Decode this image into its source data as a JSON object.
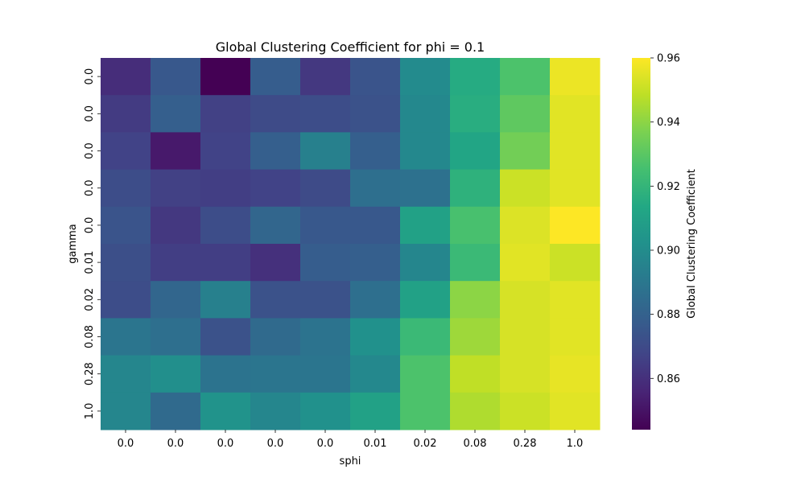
{
  "chart_data": {
    "type": "heatmap",
    "title": "Global Clustering Coefficient for phi = 0.1",
    "xlabel": "sphi",
    "ylabel": "gamma",
    "x_categories": [
      "0.0",
      "0.0",
      "0.0",
      "0.0",
      "0.0",
      "0.01",
      "0.02",
      "0.08",
      "0.28",
      "1.0"
    ],
    "y_categories": [
      "0.0",
      "0.0",
      "0.0",
      "0.0",
      "0.0",
      "0.01",
      "0.02",
      "0.08",
      "0.28",
      "1.0"
    ],
    "values": [
      [
        0.859,
        0.876,
        0.844,
        0.878,
        0.863,
        0.874,
        0.899,
        0.915,
        0.927,
        0.957
      ],
      [
        0.864,
        0.879,
        0.866,
        0.87,
        0.871,
        0.873,
        0.898,
        0.916,
        0.931,
        0.955
      ],
      [
        0.867,
        0.852,
        0.867,
        0.879,
        0.894,
        0.879,
        0.898,
        0.912,
        0.935,
        0.955
      ],
      [
        0.871,
        0.866,
        0.865,
        0.867,
        0.87,
        0.886,
        0.887,
        0.918,
        0.951,
        0.955
      ],
      [
        0.874,
        0.863,
        0.871,
        0.882,
        0.876,
        0.876,
        0.91,
        0.926,
        0.954,
        0.96
      ],
      [
        0.872,
        0.865,
        0.865,
        0.86,
        0.878,
        0.879,
        0.897,
        0.922,
        0.955,
        0.951
      ],
      [
        0.871,
        0.882,
        0.894,
        0.873,
        0.873,
        0.886,
        0.91,
        0.94,
        0.953,
        0.955
      ],
      [
        0.889,
        0.886,
        0.873,
        0.884,
        0.888,
        0.902,
        0.922,
        0.943,
        0.953,
        0.955
      ],
      [
        0.897,
        0.901,
        0.888,
        0.889,
        0.889,
        0.898,
        0.927,
        0.949,
        0.953,
        0.956
      ],
      [
        0.897,
        0.884,
        0.903,
        0.897,
        0.902,
        0.91,
        0.927,
        0.946,
        0.951,
        0.955
      ]
    ],
    "colormap": "viridis",
    "vmin": 0.844,
    "vmax": 0.96,
    "colorbar": {
      "label": "Global Clustering Coefficient",
      "ticks": [
        0.86,
        0.88,
        0.9,
        0.92,
        0.94,
        0.96
      ],
      "tick_labels": [
        "0.86",
        "0.88",
        "0.90",
        "0.92",
        "0.94",
        "0.96"
      ]
    }
  }
}
